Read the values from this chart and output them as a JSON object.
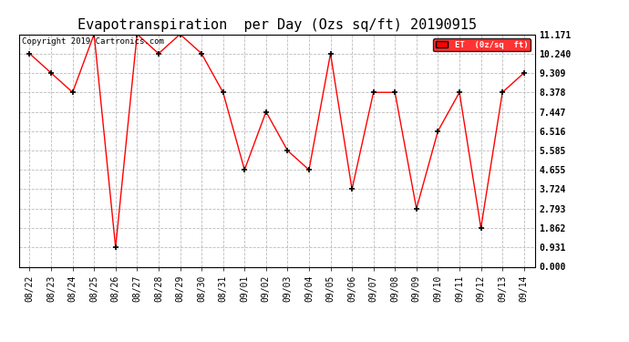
{
  "title": "Evapotranspiration  per Day (Ozs sq/ft) 20190915",
  "copyright": "Copyright 2019 Cartronics.com",
  "legend_label": "ET  (0z/sq  ft)",
  "dates": [
    "08/22",
    "08/23",
    "08/24",
    "08/25",
    "08/26",
    "08/27",
    "08/28",
    "08/29",
    "08/30",
    "08/31",
    "09/01",
    "09/02",
    "09/03",
    "09/04",
    "09/05",
    "09/06",
    "09/07",
    "09/08",
    "09/09",
    "09/10",
    "09/11",
    "09/12",
    "09/13",
    "09/14"
  ],
  "values": [
    10.24,
    9.309,
    8.378,
    11.171,
    0.931,
    11.171,
    10.24,
    11.171,
    10.24,
    8.378,
    4.655,
    7.447,
    5.585,
    4.655,
    10.24,
    3.724,
    8.378,
    8.378,
    2.793,
    6.516,
    8.378,
    1.862,
    8.378,
    9.309
  ],
  "yticks": [
    0.0,
    0.931,
    1.862,
    2.793,
    3.724,
    4.655,
    5.585,
    6.516,
    7.447,
    8.378,
    9.309,
    10.24,
    11.171
  ],
  "ylim": [
    0.0,
    11.171
  ],
  "line_color": "red",
  "marker": "+",
  "marker_color": "black",
  "bg_color": "white",
  "grid_color": "#bbbbbb",
  "legend_bg": "red",
  "legend_text_color": "white",
  "title_fontsize": 11,
  "tick_fontsize": 7,
  "ytick_fontsize": 7,
  "copyright_fontsize": 6.5
}
